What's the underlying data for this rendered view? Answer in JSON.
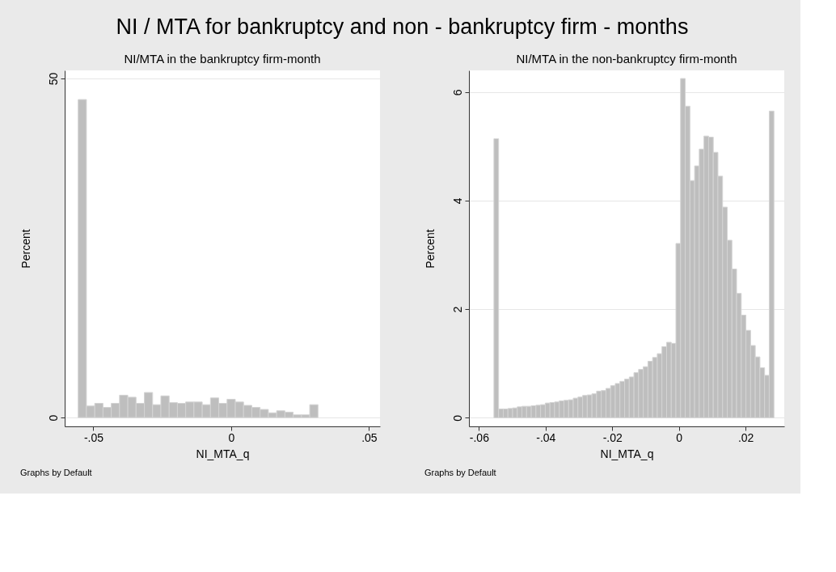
{
  "chart_data": [
    {
      "type": "histogram",
      "title": "NI/MTA in the bankruptcy firm-month",
      "xlabel": "NI_MTA_q",
      "ylabel": "Percent",
      "annotations": [
        "NI / MTA for bankruptcy and non - bankruptcy firm - months",
        "Graphs by Default"
      ],
      "bins": [
        -0.0555,
        -0.0525,
        -0.0495,
        -0.0465,
        -0.0435,
        -0.0405,
        -0.0375,
        -0.0345,
        -0.0315,
        -0.0285,
        -0.0255,
        -0.0225,
        -0.0195,
        -0.0165,
        -0.0135,
        -0.0105,
        -0.0075,
        -0.0045,
        -0.0015,
        0.0015,
        0.0045,
        0.0075,
        0.0105,
        0.0135,
        0.0165,
        0.0195,
        0.0225,
        0.0255,
        0.0285,
        0.0315
      ],
      "values": [
        46.9,
        1.7,
        2.1,
        1.5,
        2.1,
        3.3,
        3.0,
        2.1,
        3.7,
        1.9,
        3.2,
        2.2,
        2.1,
        2.3,
        2.3,
        1.9,
        2.9,
        2.1,
        2.7,
        2.3,
        1.8,
        1.5,
        1.2,
        0.7,
        1.0,
        0.8,
        0.4,
        0.4,
        1.9
      ],
      "color": "#bebebe",
      "xlim": [
        -0.0604,
        0.054
      ],
      "xticks": [
        {
          "value": -0.05,
          "label": "-.05"
        },
        0,
        {
          "value": 0.05,
          "label": ".05"
        }
      ],
      "ylim": [
        -1.3,
        51.2
      ],
      "yticks": [
        0,
        50
      ],
      "grid": "y"
    },
    {
      "type": "histogram",
      "title": "NI/MTA in the non-bankruptcy firm-month",
      "xlabel": "NI_MTA_q",
      "ylabel": "Percent",
      "annotations": [
        "Graphs by Default"
      ],
      "bins": [
        -0.0555,
        -0.0541,
        -0.0527,
        -0.0513,
        -0.0499,
        -0.0485,
        -0.0471,
        -0.0457,
        -0.0443,
        -0.0429,
        -0.0415,
        -0.0401,
        -0.0387,
        -0.0373,
        -0.0359,
        -0.0345,
        -0.0331,
        -0.0317,
        -0.0303,
        -0.0289,
        -0.0275,
        -0.0261,
        -0.0247,
        -0.0233,
        -0.0219,
        -0.0205,
        -0.0191,
        -0.0177,
        -0.0163,
        -0.0149,
        -0.0135,
        -0.0121,
        -0.0107,
        -0.0093,
        -0.0079,
        -0.0065,
        -0.0051,
        -0.0037,
        -0.0023,
        -0.0009,
        0.0005,
        0.0019,
        0.0033,
        0.0047,
        0.0061,
        0.0075,
        0.0089,
        0.0103,
        0.0117,
        0.0131,
        0.0145,
        0.0159,
        0.0173,
        0.0187,
        0.0201,
        0.0215,
        0.0229,
        0.0243,
        0.0257,
        0.0271,
        0.0285
      ],
      "values": [
        5.14,
        0.16,
        0.16,
        0.17,
        0.18,
        0.2,
        0.21,
        0.21,
        0.22,
        0.23,
        0.24,
        0.27,
        0.28,
        0.29,
        0.31,
        0.32,
        0.33,
        0.36,
        0.38,
        0.41,
        0.42,
        0.44,
        0.49,
        0.5,
        0.54,
        0.59,
        0.63,
        0.67,
        0.71,
        0.75,
        0.83,
        0.89,
        0.94,
        1.04,
        1.11,
        1.18,
        1.31,
        1.39,
        1.37,
        3.21,
        6.25,
        5.74,
        4.37,
        4.64,
        4.95,
        5.19,
        5.17,
        4.89,
        4.45,
        3.88,
        3.27,
        2.74,
        2.29,
        1.89,
        1.61,
        1.33,
        1.12,
        0.92,
        0.78,
        5.65
      ],
      "color": "#bebebe",
      "xlim": [
        -0.063,
        0.0316
      ],
      "xticks": [
        {
          "value": -0.06,
          "label": "-.06"
        },
        {
          "value": -0.04,
          "label": "-.04"
        },
        {
          "value": -0.02,
          "label": "-.02"
        },
        0,
        {
          "value": 0.02,
          "label": ".02"
        }
      ],
      "ylim": [
        -0.16,
        6.4
      ],
      "yticks": [
        0,
        2,
        4,
        6
      ],
      "grid": "y"
    }
  ]
}
